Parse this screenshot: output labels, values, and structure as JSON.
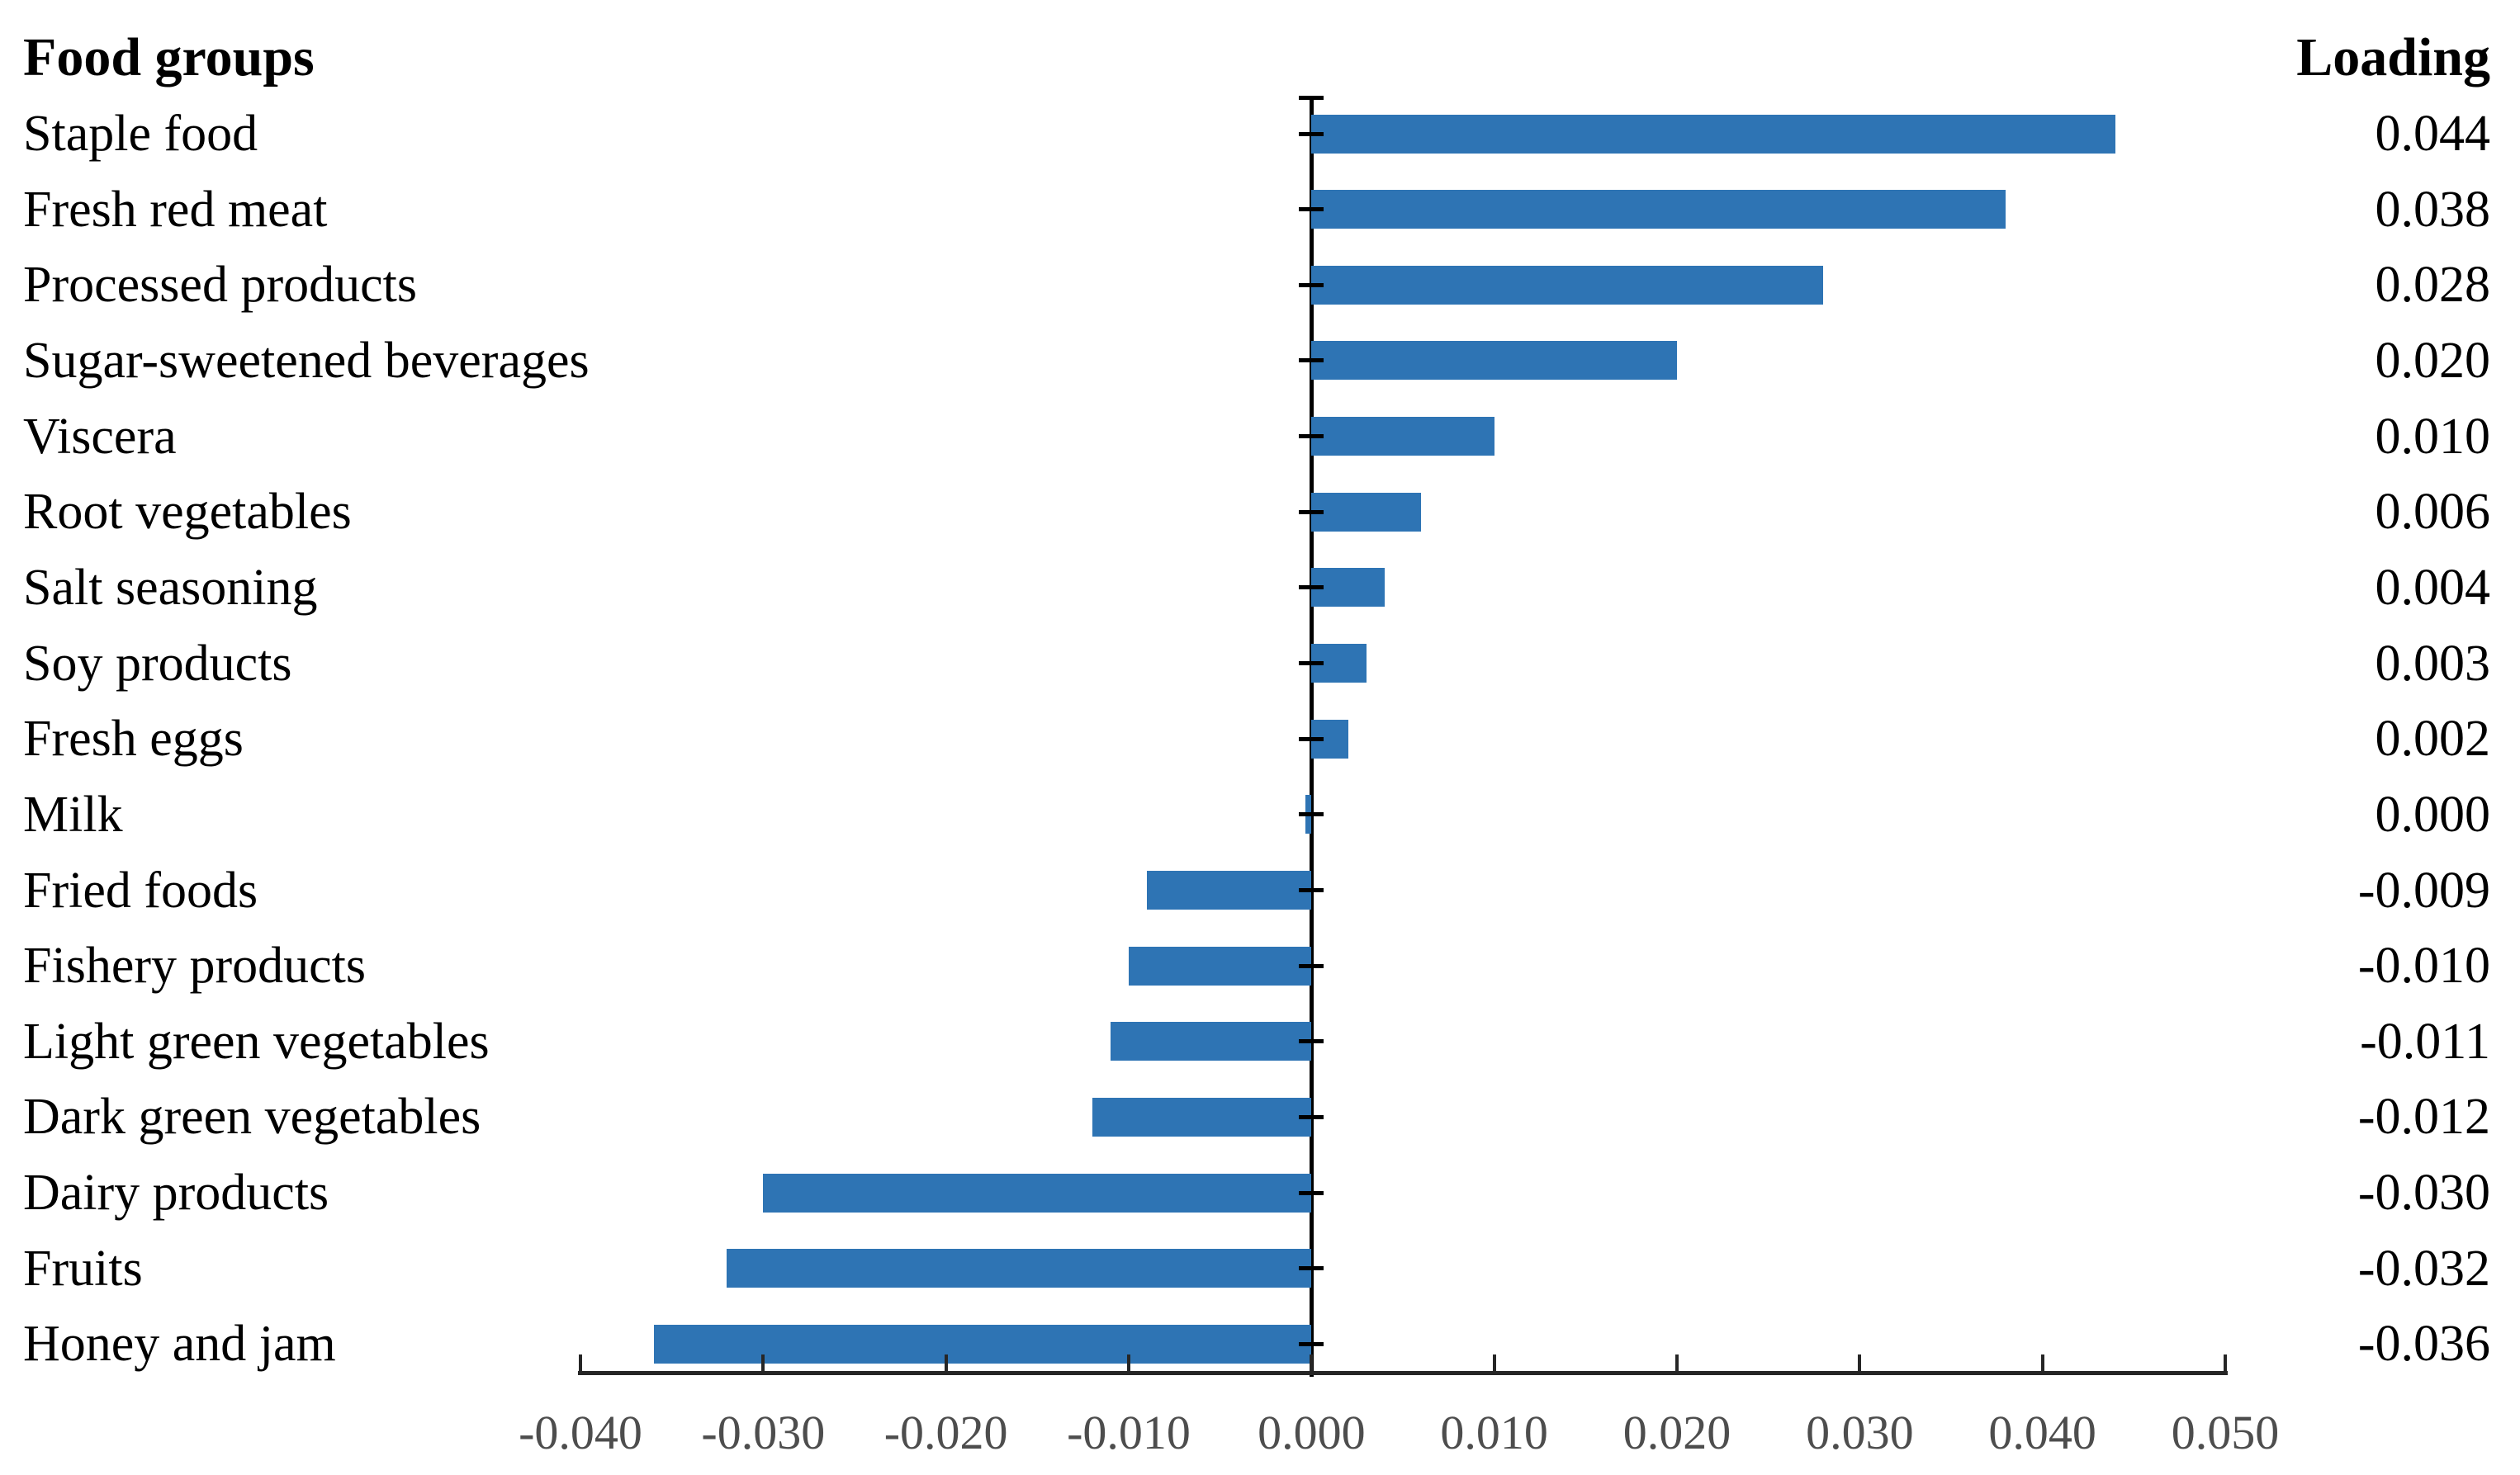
{
  "headers": {
    "left": "Food groups",
    "right": "Loading"
  },
  "chart_data": {
    "type": "bar",
    "orientation": "horizontal",
    "title": "",
    "xlabel": "",
    "ylabel": "",
    "categories": [
      "Staple food",
      "Fresh red meat",
      "Processed products",
      "Sugar-sweetened beverages",
      "Viscera",
      "Root vegetables",
      "Salt seasoning",
      "Soy products",
      "Fresh eggs",
      "Milk",
      "Fried foods",
      "Fishery products",
      "Light green vegetables",
      "Dark green vegetables",
      "Dairy products",
      "Fruits",
      "Honey and jam"
    ],
    "values": [
      0.044,
      0.038,
      0.028,
      0.02,
      0.01,
      0.006,
      0.004,
      0.003,
      0.002,
      0.0,
      -0.009,
      -0.01,
      -0.011,
      -0.012,
      -0.03,
      -0.032,
      -0.036
    ],
    "loading_labels": [
      "0.044",
      "0.038",
      "0.028",
      "0.020",
      "0.010",
      "0.006",
      "0.004",
      "0.003",
      "0.002",
      "0.000",
      "-0.009",
      "-0.010",
      "-0.011",
      "-0.012",
      "-0.030",
      "-0.032",
      "-0.036"
    ],
    "x_tick_labels": [
      "-0.040",
      "-0.030",
      "-0.020",
      "-0.010",
      "0.000",
      "0.010",
      "0.020",
      "0.030",
      "0.040",
      "0.050"
    ],
    "x_tick_values": [
      -0.04,
      -0.03,
      -0.02,
      -0.01,
      0.0,
      0.01,
      0.02,
      0.03,
      0.04,
      0.05
    ],
    "xlim": [
      -0.04,
      0.05
    ],
    "bar_color": "#2E74B4",
    "axis_color": "#1A1A1A",
    "tick_label_color": "#4D4D4D",
    "grid": "off",
    "legend": "none"
  }
}
